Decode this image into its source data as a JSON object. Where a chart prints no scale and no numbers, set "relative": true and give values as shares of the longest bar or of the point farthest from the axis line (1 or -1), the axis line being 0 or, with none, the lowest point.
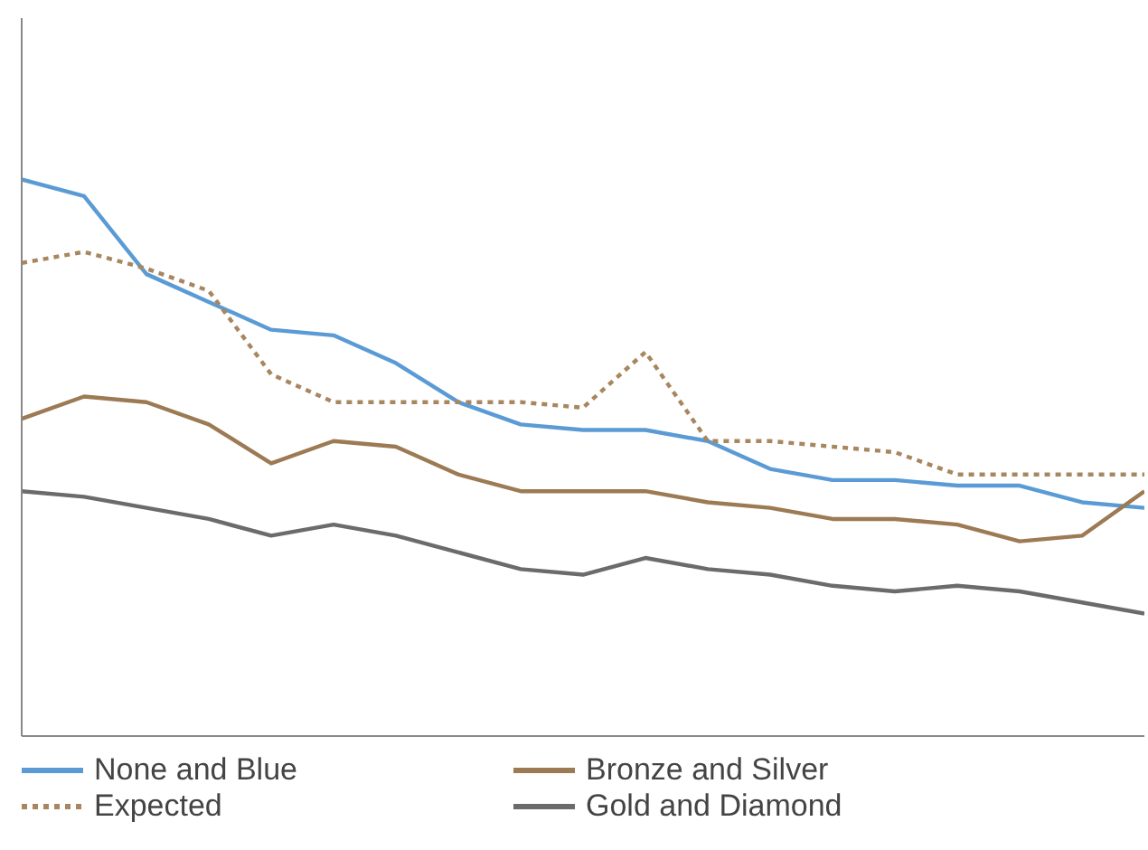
{
  "chart_data": {
    "type": "line",
    "relative": true,
    "categories": [
      null,
      null,
      null,
      null,
      null,
      null,
      null,
      null,
      null,
      null,
      null,
      null,
      null,
      null,
      null,
      null,
      null,
      null,
      null
    ],
    "series": [
      {
        "name": "None and Blue",
        "color": "#5b9bd5",
        "line_style": "solid",
        "values": [
          1,
          0.97,
          0.83,
          0.78,
          0.73,
          0.72,
          0.67,
          0.6,
          0.56,
          0.55,
          0.55,
          0.53,
          0.48,
          0.46,
          0.46,
          0.45,
          0.45,
          0.42,
          0.41
        ]
      },
      {
        "name": "Bronze and Silver",
        "color": "#9c7a54",
        "line_style": "solid",
        "values": [
          0.57,
          0.61,
          0.6,
          0.56,
          0.49,
          0.53,
          0.52,
          0.47,
          0.44,
          0.44,
          0.44,
          0.42,
          0.41,
          0.39,
          0.39,
          0.38,
          0.35,
          0.36,
          0.44
        ]
      },
      {
        "name": "Expected",
        "color": "#a8865f",
        "line_style": "dotted",
        "values": [
          0.85,
          0.87,
          0.84,
          0.8,
          0.65,
          0.6,
          0.6,
          0.6,
          0.6,
          0.59,
          0.69,
          0.53,
          0.53,
          0.52,
          0.51,
          0.47,
          0.47,
          0.47,
          0.47
        ]
      },
      {
        "name": "Gold and Diamond",
        "color": "#6b6b6b",
        "line_style": "solid",
        "values": [
          0.44,
          0.43,
          0.41,
          0.39,
          0.36,
          0.38,
          0.36,
          0.33,
          0.3,
          0.29,
          0.32,
          0.3,
          0.29,
          0.27,
          0.26,
          0.27,
          0.26,
          0.24,
          0.22
        ]
      }
    ],
    "legend": "bottom",
    "grid": false,
    "marker": "none"
  }
}
